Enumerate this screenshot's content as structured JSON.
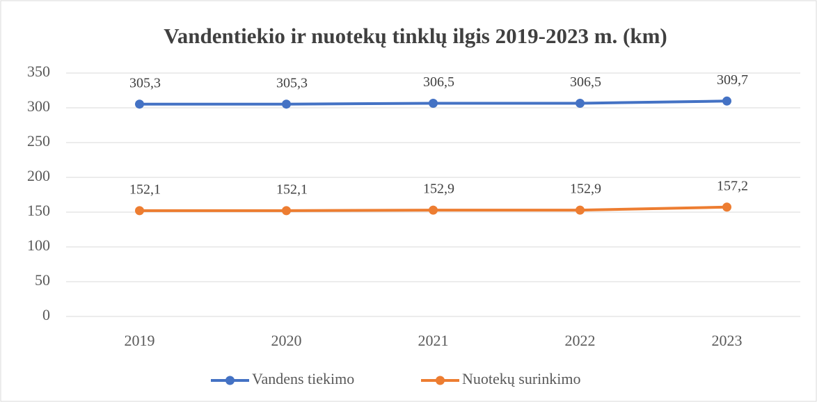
{
  "chart_data": {
    "type": "line",
    "title": "Vandentiekio ir nuotekų tinklų ilgis 2019-2023 m. (km)",
    "categories": [
      "2019",
      "2020",
      "2021",
      "2022",
      "2023"
    ],
    "series": [
      {
        "name": "Vandens tiekimo",
        "color": "#4472c4",
        "values": [
          305.3,
          305.3,
          306.5,
          306.5,
          309.7
        ],
        "value_labels": [
          "305,3",
          "305,3",
          "306,5",
          "306,5",
          "309,7"
        ]
      },
      {
        "name": "Nuotekų surinkimo",
        "color": "#ed7d31",
        "values": [
          152.1,
          152.1,
          152.9,
          152.9,
          157.2
        ],
        "value_labels": [
          "152,1",
          "152,1",
          "152,9",
          "152,9",
          "157,2"
        ]
      }
    ],
    "ylim": [
      0,
      350
    ],
    "yticks": [
      0,
      50,
      100,
      150,
      200,
      250,
      300,
      350
    ],
    "grid": true,
    "legend": "bottom"
  }
}
